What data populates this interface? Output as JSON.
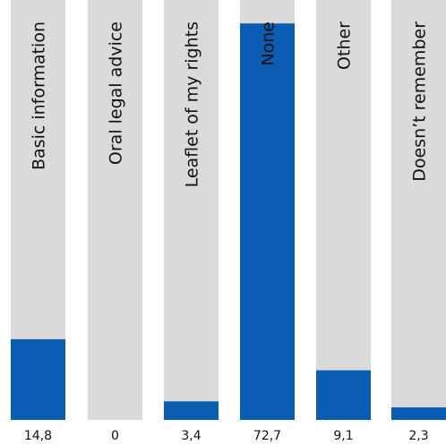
{
  "chart_data": {
    "type": "bar",
    "categories": [
      "Basic information",
      "Oral legal advice",
      "Leaflet of my rights",
      "None",
      "Other",
      "Doesn’t remember"
    ],
    "values": [
      14.8,
      0,
      3.4,
      72.7,
      9.1,
      2.3
    ],
    "value_labels": [
      "14,8",
      "0",
      "3,4",
      "72,7",
      "9,1",
      "2,3"
    ],
    "ylim": [
      0,
      77
    ],
    "title": "",
    "xlabel": "",
    "ylabel": "",
    "grid": false,
    "colors": {
      "bar": "#0a5db2",
      "track": "#dadada"
    }
  }
}
